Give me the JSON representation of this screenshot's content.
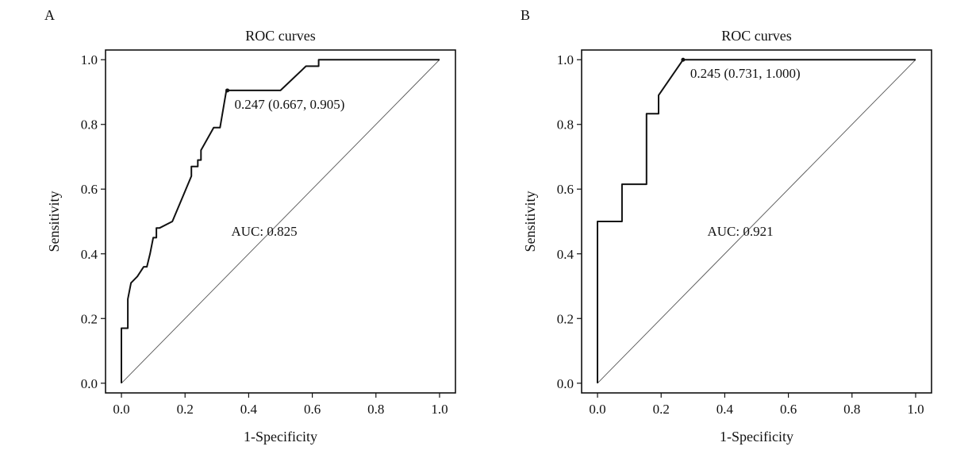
{
  "chart_data": [
    {
      "type": "line",
      "panel_label": "A",
      "title": "ROC curves",
      "xlabel": "1-Specificity",
      "ylabel": "Sensitivity",
      "xlim": [
        -0.05,
        1.05
      ],
      "ylim": [
        -0.03,
        1.03
      ],
      "xticks": [
        0.0,
        0.2,
        0.4,
        0.6,
        0.8,
        1.0
      ],
      "yticks": [
        0.0,
        0.2,
        0.4,
        0.6,
        0.8,
        1.0
      ],
      "tick_labels": [
        "0.0",
        "0.2",
        "0.4",
        "0.6",
        "0.8",
        "1.0"
      ],
      "grid": false,
      "reference_line": [
        [
          0,
          0
        ],
        [
          1,
          1
        ]
      ],
      "series": [
        {
          "x": [
            0.0,
            0.0,
            0.02,
            0.02,
            0.03,
            0.05,
            0.07,
            0.08,
            0.09,
            0.1,
            0.11,
            0.11,
            0.12,
            0.16,
            0.19,
            0.22,
            0.22,
            0.24,
            0.24,
            0.25,
            0.25,
            0.29,
            0.31,
            0.33,
            0.5,
            0.58,
            0.62,
            0.62,
            1.0
          ],
          "y": [
            0.0,
            0.17,
            0.17,
            0.26,
            0.31,
            0.33,
            0.36,
            0.36,
            0.4,
            0.45,
            0.45,
            0.48,
            0.48,
            0.5,
            0.57,
            0.64,
            0.67,
            0.67,
            0.69,
            0.69,
            0.72,
            0.79,
            0.79,
            0.905,
            0.905,
            0.98,
            0.98,
            1.0,
            1.0
          ]
        }
      ],
      "cutoff_point": {
        "x": 0.333,
        "y": 0.905,
        "label": "0.247 (0.667, 0.905)"
      },
      "auc_label": "AUC: 0.825",
      "auc_label_pos": {
        "x": 0.5,
        "y": 0.47
      }
    },
    {
      "type": "line",
      "panel_label": "B",
      "title": "ROC curves",
      "xlabel": "1-Specificity",
      "ylabel": "Sensitivity",
      "xlim": [
        -0.05,
        1.05
      ],
      "ylim": [
        -0.03,
        1.03
      ],
      "xticks": [
        0.0,
        0.2,
        0.4,
        0.6,
        0.8,
        1.0
      ],
      "yticks": [
        0.0,
        0.2,
        0.4,
        0.6,
        0.8,
        1.0
      ],
      "tick_labels": [
        "0.0",
        "0.2",
        "0.4",
        "0.6",
        "0.8",
        "1.0"
      ],
      "grid": false,
      "reference_line": [
        [
          0,
          0
        ],
        [
          1,
          1
        ]
      ],
      "series": [
        {
          "x": [
            0.0,
            0.0,
            0.077,
            0.077,
            0.154,
            0.154,
            0.192,
            0.192,
            0.269,
            1.0
          ],
          "y": [
            0.0,
            0.5,
            0.5,
            0.615,
            0.615,
            0.833,
            0.833,
            0.89,
            1.0,
            1.0
          ]
        }
      ],
      "cutoff_point": {
        "x": 0.269,
        "y": 1.0,
        "label": "0.245 (0.731, 1.000)"
      },
      "auc_label": "AUC: 0.921",
      "auc_label_pos": {
        "x": 0.5,
        "y": 0.47
      }
    }
  ]
}
